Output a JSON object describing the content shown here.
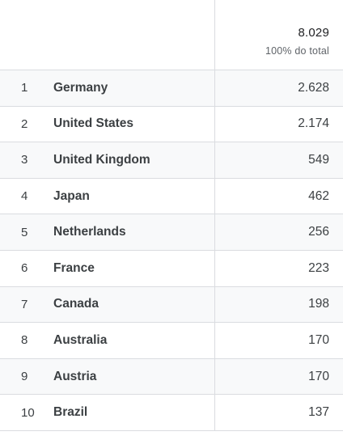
{
  "summary": {
    "total": "8.029",
    "total_label": "100% do total"
  },
  "rows": [
    {
      "rank": "1",
      "country": "Germany",
      "value": "2.628"
    },
    {
      "rank": "2",
      "country": "United States",
      "value": "2.174"
    },
    {
      "rank": "3",
      "country": "United Kingdom",
      "value": "549"
    },
    {
      "rank": "4",
      "country": "Japan",
      "value": "462"
    },
    {
      "rank": "5",
      "country": "Netherlands",
      "value": "256"
    },
    {
      "rank": "6",
      "country": "France",
      "value": "223"
    },
    {
      "rank": "7",
      "country": "Canada",
      "value": "198"
    },
    {
      "rank": "8",
      "country": "Australia",
      "value": "170"
    },
    {
      "rank": "9",
      "country": "Austria",
      "value": "170"
    },
    {
      "rank": "10",
      "country": "Brazil",
      "value": "137"
    }
  ]
}
